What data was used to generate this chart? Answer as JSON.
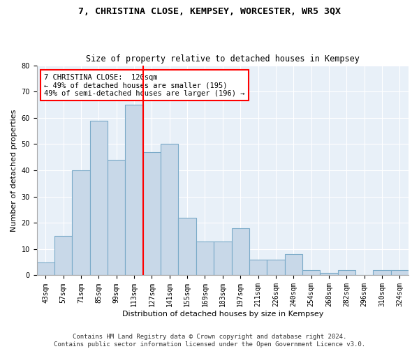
{
  "title": "7, CHRISTINA CLOSE, KEMPSEY, WORCESTER, WR5 3QX",
  "subtitle": "Size of property relative to detached houses in Kempsey",
  "xlabel": "Distribution of detached houses by size in Kempsey",
  "ylabel": "Number of detached properties",
  "categories": [
    "43sqm",
    "57sqm",
    "71sqm",
    "85sqm",
    "99sqm",
    "113sqm",
    "127sqm",
    "141sqm",
    "155sqm",
    "169sqm",
    "183sqm",
    "197sqm",
    "211sqm",
    "226sqm",
    "240sqm",
    "254sqm",
    "268sqm",
    "282sqm",
    "296sqm",
    "310sqm",
    "324sqm"
  ],
  "values": [
    5,
    15,
    40,
    59,
    44,
    65,
    47,
    50,
    22,
    13,
    13,
    18,
    6,
    6,
    8,
    2,
    1,
    2,
    0,
    2,
    2
  ],
  "bar_color": "#c8d8e8",
  "bar_edge_color": "#7aaac8",
  "annotation_line1": "7 CHRISTINA CLOSE:  120sqm",
  "annotation_line2": "← 49% of detached houses are smaller (195)",
  "annotation_line3": "49% of semi-detached houses are larger (196) →",
  "annotation_box_color": "white",
  "annotation_box_edge_color": "red",
  "vline_color": "red",
  "ylim": [
    0,
    80
  ],
  "yticks": [
    0,
    10,
    20,
    30,
    40,
    50,
    60,
    70,
    80
  ],
  "background_color": "#e8f0f8",
  "footer": "Contains HM Land Registry data © Crown copyright and database right 2024.\nContains public sector information licensed under the Open Government Licence v3.0.",
  "title_fontsize": 9.5,
  "subtitle_fontsize": 8.5,
  "xlabel_fontsize": 8,
  "ylabel_fontsize": 8,
  "tick_fontsize": 7,
  "annotation_fontsize": 7.5,
  "footer_fontsize": 6.5
}
